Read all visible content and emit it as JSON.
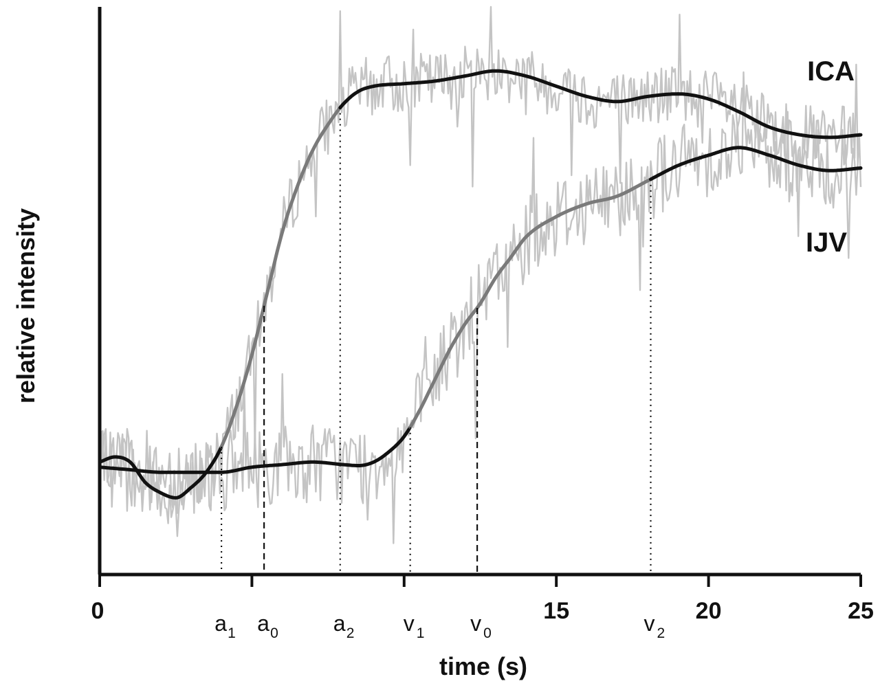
{
  "chart_data": {
    "type": "line",
    "title": "",
    "xlabel": "time (s)",
    "ylabel": "relative intensity",
    "xlim": [
      0,
      25
    ],
    "ylim": [
      0,
      1
    ],
    "grid": false,
    "x_tick_labels": [
      {
        "value": 0,
        "label": "0"
      },
      {
        "value": 15,
        "label": "15"
      },
      {
        "value": 20,
        "label": "20"
      },
      {
        "value": 25,
        "label": "25"
      }
    ],
    "x_minor_ticks": [
      5,
      10
    ],
    "markers": [
      {
        "letter": "a",
        "sub": "1",
        "x": 4.0,
        "style": "dotted"
      },
      {
        "letter": "a",
        "sub": "0",
        "x": 5.4,
        "style": "dashed"
      },
      {
        "letter": "a",
        "sub": "2",
        "x": 7.9,
        "style": "dotted"
      },
      {
        "letter": "v",
        "sub": "1",
        "x": 10.2,
        "style": "dotted"
      },
      {
        "letter": "v",
        "sub": "0",
        "x": 12.4,
        "style": "dashed"
      },
      {
        "letter": "v",
        "sub": "2",
        "x": 18.1,
        "style": "dotted"
      }
    ],
    "series": [
      {
        "name": "ICA",
        "fit_x": [
          0,
          0.5,
          1,
          1.5,
          2,
          2.5,
          3,
          3.5,
          4,
          4.5,
          5,
          5.5,
          6,
          6.5,
          7,
          7.5,
          8,
          8.5,
          9,
          10,
          11,
          12,
          13,
          14,
          15,
          16,
          17,
          18,
          19,
          20,
          21,
          22,
          23,
          24,
          25
        ],
        "fit_y": [
          0.22,
          0.23,
          0.22,
          0.18,
          0.16,
          0.15,
          0.17,
          0.2,
          0.25,
          0.33,
          0.43,
          0.55,
          0.67,
          0.76,
          0.83,
          0.88,
          0.92,
          0.945,
          0.955,
          0.96,
          0.965,
          0.975,
          0.985,
          0.975,
          0.955,
          0.935,
          0.925,
          0.935,
          0.94,
          0.93,
          0.905,
          0.875,
          0.86,
          0.855,
          0.86
        ],
        "rise_range": [
          4.0,
          7.9
        ],
        "noise_amplitude": 0.06
      },
      {
        "name": "IJV",
        "fit_x": [
          0,
          1,
          2,
          3,
          4,
          5,
          6,
          7,
          8,
          8.5,
          9,
          9.5,
          10,
          10.5,
          11,
          11.5,
          12,
          12.5,
          13,
          13.5,
          14,
          15,
          16,
          17,
          18,
          19,
          20,
          21,
          22,
          23,
          24,
          25
        ],
        "fit_y": [
          0.21,
          0.205,
          0.2,
          0.2,
          0.2,
          0.21,
          0.215,
          0.22,
          0.215,
          0.213,
          0.22,
          0.24,
          0.27,
          0.32,
          0.38,
          0.44,
          0.49,
          0.53,
          0.58,
          0.62,
          0.66,
          0.7,
          0.725,
          0.74,
          0.77,
          0.8,
          0.82,
          0.835,
          0.82,
          0.8,
          0.79,
          0.795
        ],
        "rise_range": [
          10.2,
          18.1
        ],
        "noise_amplitude": 0.08
      }
    ]
  }
}
